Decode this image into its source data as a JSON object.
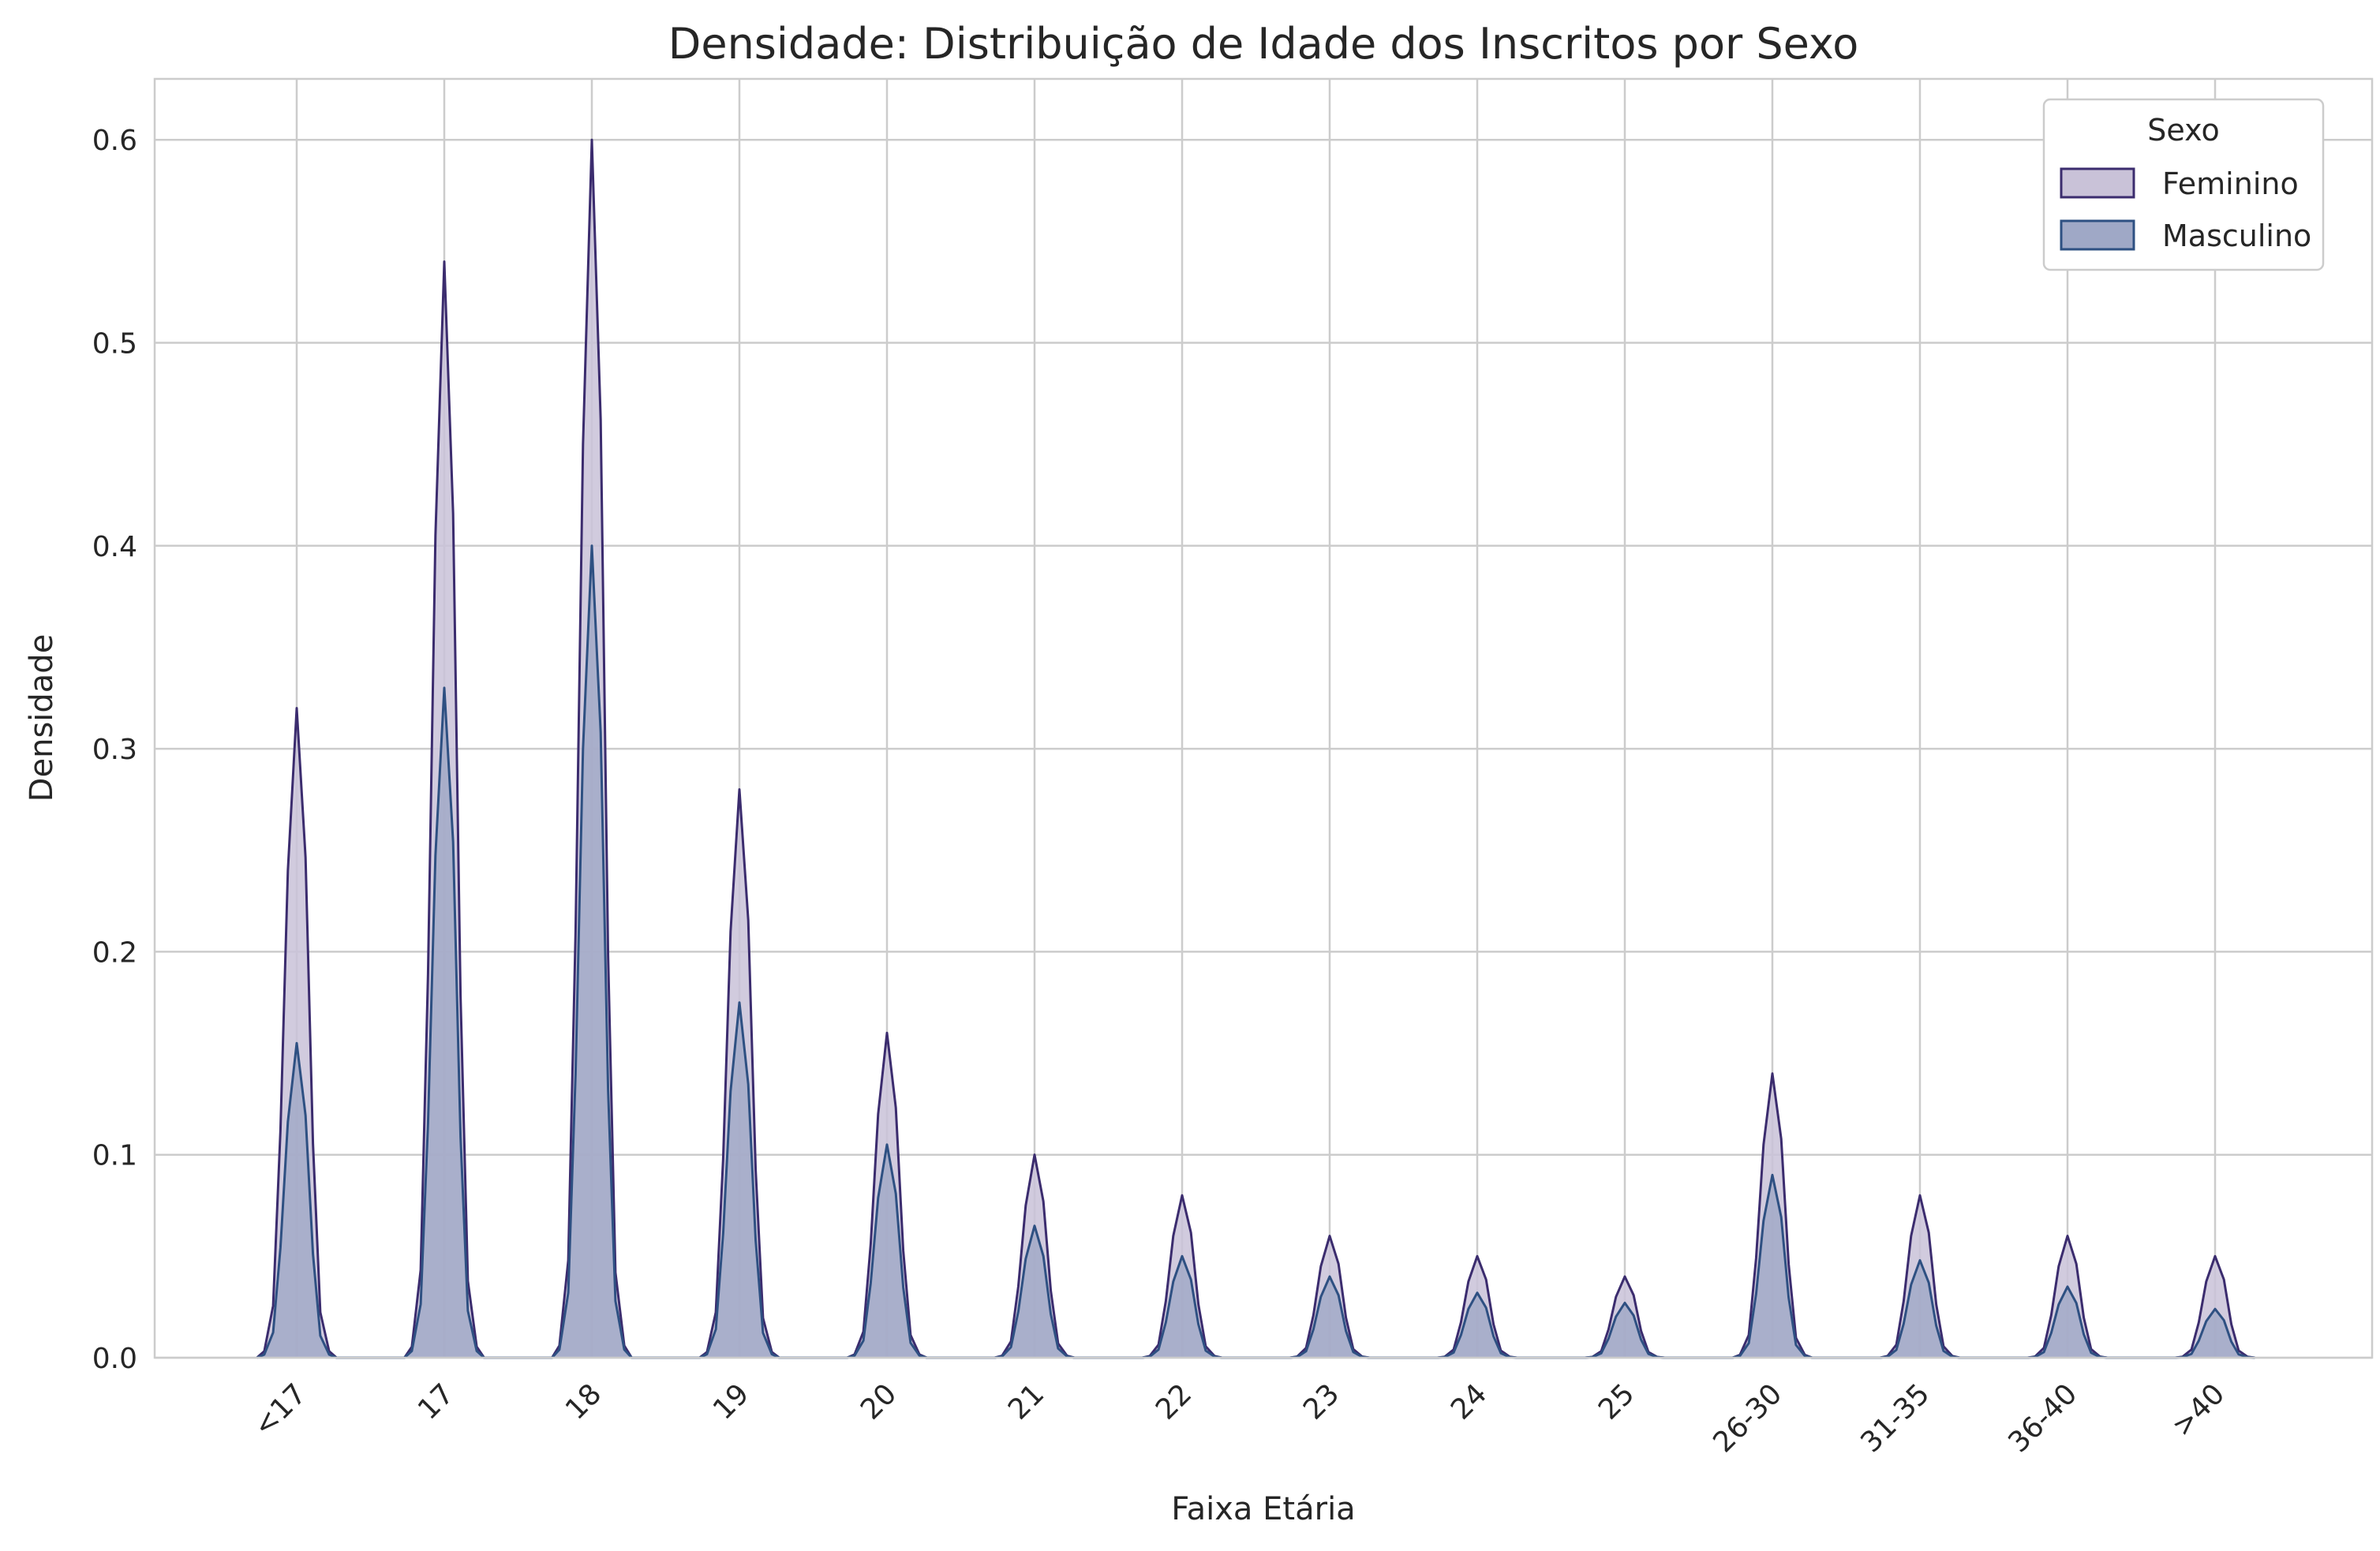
{
  "chart_data": {
    "type": "area",
    "title": "Densidade: Distribuição de Idade dos Inscritos por Sexo",
    "xlabel": "Faixa Etária",
    "ylabel": "Densidade",
    "categories": [
      "<17",
      "17",
      "18",
      "19",
      "20",
      "21",
      "22",
      "23",
      "24",
      "25",
      "26-30",
      "31-35",
      "36-40",
      ">40"
    ],
    "ylim": [
      0,
      0.63
    ],
    "yticks": [
      0.0,
      0.1,
      0.2,
      0.3,
      0.4,
      0.5,
      0.6
    ],
    "ytick_labels": [
      "0.0",
      "0.1",
      "0.2",
      "0.3",
      "0.4",
      "0.5",
      "0.6"
    ],
    "grid": true,
    "legend": {
      "title": "Sexo",
      "placement": "top-right"
    },
    "series": [
      {
        "name": "Feminino",
        "line_color": "#3b2c6e",
        "fill_color": "#c9c2d8",
        "peaks": [
          0.32,
          0.54,
          0.6,
          0.28,
          0.16,
          0.1,
          0.08,
          0.06,
          0.05,
          0.04,
          0.14,
          0.08,
          0.06,
          0.05
        ]
      },
      {
        "name": "Masculino",
        "line_color": "#2e5082",
        "fill_color": "#9fa8c6",
        "peaks": [
          0.155,
          0.33,
          0.4,
          0.175,
          0.105,
          0.065,
          0.05,
          0.04,
          0.032,
          0.027,
          0.09,
          0.048,
          0.035,
          0.024
        ]
      }
    ]
  }
}
